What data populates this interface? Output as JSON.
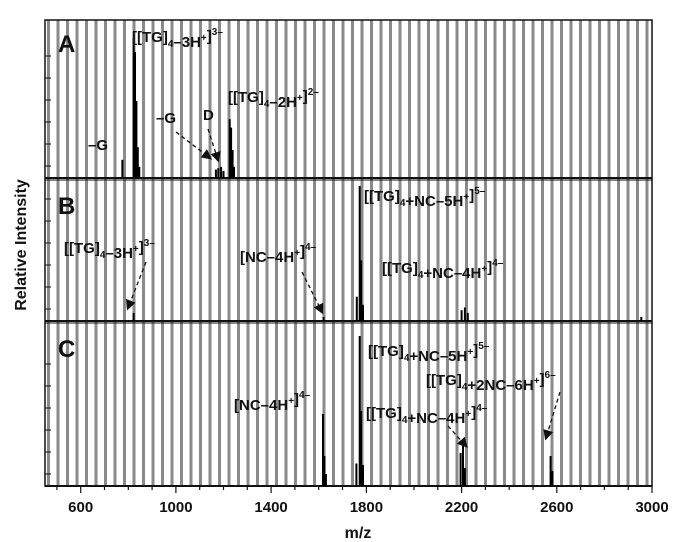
{
  "chart_data": {
    "type": "line",
    "xlabel": "m/z",
    "ylabel": "Relative Intensity",
    "xlim": [
      450,
      3000
    ],
    "x_ticks": [
      600,
      1000,
      1400,
      1800,
      2200,
      2600,
      3000
    ],
    "grid": "vertical stripes",
    "panels": [
      {
        "label": "A",
        "peaks": [
          {
            "x": 775,
            "y": 0.13
          },
          {
            "x": 822,
            "y": 1.0
          },
          {
            "x": 828,
            "y": 0.9
          },
          {
            "x": 834,
            "y": 0.55
          },
          {
            "x": 840,
            "y": 0.22
          },
          {
            "x": 846,
            "y": 0.08
          },
          {
            "x": 1168,
            "y": 0.06
          },
          {
            "x": 1178,
            "y": 0.07
          },
          {
            "x": 1190,
            "y": 0.08
          },
          {
            "x": 1200,
            "y": 0.05
          },
          {
            "x": 1226,
            "y": 0.42
          },
          {
            "x": 1232,
            "y": 0.36
          },
          {
            "x": 1238,
            "y": 0.2
          },
          {
            "x": 1244,
            "y": 0.08
          }
        ],
        "annotations": [
          {
            "id": "a1",
            "parts": [
              [
                "n",
                "[[TG]"
              ],
              [
                "sub",
                "4"
              ],
              [
                "n",
                "–3H"
              ],
              [
                "sup",
                "+"
              ],
              [
                "n",
                "]"
              ],
              [
                "sup",
                "3–"
              ]
            ]
          },
          {
            "id": "a2",
            "parts": [
              [
                "n",
                "–G"
              ]
            ]
          },
          {
            "id": "a3",
            "parts": [
              [
                "n",
                "–G"
              ]
            ]
          },
          {
            "id": "a4",
            "parts": [
              [
                "n",
                "D"
              ]
            ]
          },
          {
            "id": "a5",
            "parts": [
              [
                "n",
                "[[TG]"
              ],
              [
                "sub",
                "4"
              ],
              [
                "n",
                "–2H"
              ],
              [
                "sup",
                "+"
              ],
              [
                "n",
                "]"
              ],
              [
                "sup",
                "2–"
              ]
            ]
          }
        ]
      },
      {
        "label": "B",
        "peaks": [
          {
            "x": 822,
            "y": 0.06
          },
          {
            "x": 1620,
            "y": 0.03
          },
          {
            "x": 1760,
            "y": 0.18
          },
          {
            "x": 1772,
            "y": 1.0
          },
          {
            "x": 1778,
            "y": 0.45
          },
          {
            "x": 1786,
            "y": 0.12
          },
          {
            "x": 2200,
            "y": 0.08
          },
          {
            "x": 2214,
            "y": 0.1
          },
          {
            "x": 2226,
            "y": 0.06
          },
          {
            "x": 2955,
            "y": 0.03
          }
        ],
        "annotations": [
          {
            "id": "b1",
            "parts": [
              [
                "n",
                "[[TG]"
              ],
              [
                "sub",
                "4"
              ],
              [
                "n",
                "+NC–5H"
              ],
              [
                "sup",
                "+"
              ],
              [
                "n",
                "]"
              ],
              [
                "sup",
                "5–"
              ]
            ]
          },
          {
            "id": "b2",
            "parts": [
              [
                "n",
                "[[TG]"
              ],
              [
                "sub",
                "4"
              ],
              [
                "n",
                "–3H"
              ],
              [
                "sup",
                "+"
              ],
              [
                "n",
                "]"
              ],
              [
                "sup",
                "3–"
              ]
            ]
          },
          {
            "id": "b3",
            "parts": [
              [
                "n",
                "[NC–4H"
              ],
              [
                "sup",
                "+"
              ],
              [
                "n",
                "]"
              ],
              [
                "sup",
                "4–"
              ]
            ]
          },
          {
            "id": "b4",
            "parts": [
              [
                "n",
                "[[TG]"
              ],
              [
                "sub",
                "4"
              ],
              [
                "n",
                "+NC–4H"
              ],
              [
                "sup",
                "+"
              ],
              [
                "n",
                "]"
              ],
              [
                "sup",
                "4–"
              ]
            ]
          }
        ]
      },
      {
        "label": "C",
        "peaks": [
          {
            "x": 1618,
            "y": 0.48
          },
          {
            "x": 1624,
            "y": 0.2
          },
          {
            "x": 1630,
            "y": 0.08
          },
          {
            "x": 1758,
            "y": 0.15
          },
          {
            "x": 1772,
            "y": 1.0
          },
          {
            "x": 1778,
            "y": 0.5
          },
          {
            "x": 1786,
            "y": 0.14
          },
          {
            "x": 2196,
            "y": 0.22
          },
          {
            "x": 2206,
            "y": 0.28
          },
          {
            "x": 2214,
            "y": 0.12
          },
          {
            "x": 2574,
            "y": 0.2
          },
          {
            "x": 2582,
            "y": 0.1
          }
        ],
        "annotations": [
          {
            "id": "c1",
            "parts": [
              [
                "n",
                "[[TG]"
              ],
              [
                "sub",
                "4"
              ],
              [
                "n",
                "+NC–5H"
              ],
              [
                "sup",
                "+"
              ],
              [
                "n",
                "]"
              ],
              [
                "sup",
                "5–"
              ]
            ]
          },
          {
            "id": "c2",
            "parts": [
              [
                "n",
                "[[TG]"
              ],
              [
                "sub",
                "4"
              ],
              [
                "n",
                "+2NC–6H"
              ],
              [
                "sup",
                "+"
              ],
              [
                "n",
                "]"
              ],
              [
                "sup",
                "6–"
              ]
            ]
          },
          {
            "id": "c3",
            "parts": [
              [
                "n",
                "[NC–4H"
              ],
              [
                "sup",
                "+"
              ],
              [
                "n",
                "]"
              ],
              [
                "sup",
                "4–"
              ]
            ]
          },
          {
            "id": "c4",
            "parts": [
              [
                "n",
                "[[TG]"
              ],
              [
                "sub",
                "4"
              ],
              [
                "n",
                "+NC–4H"
              ],
              [
                "sup",
                "+"
              ],
              [
                "n",
                "]"
              ],
              [
                "sup",
                "4–"
              ]
            ]
          }
        ]
      }
    ]
  }
}
